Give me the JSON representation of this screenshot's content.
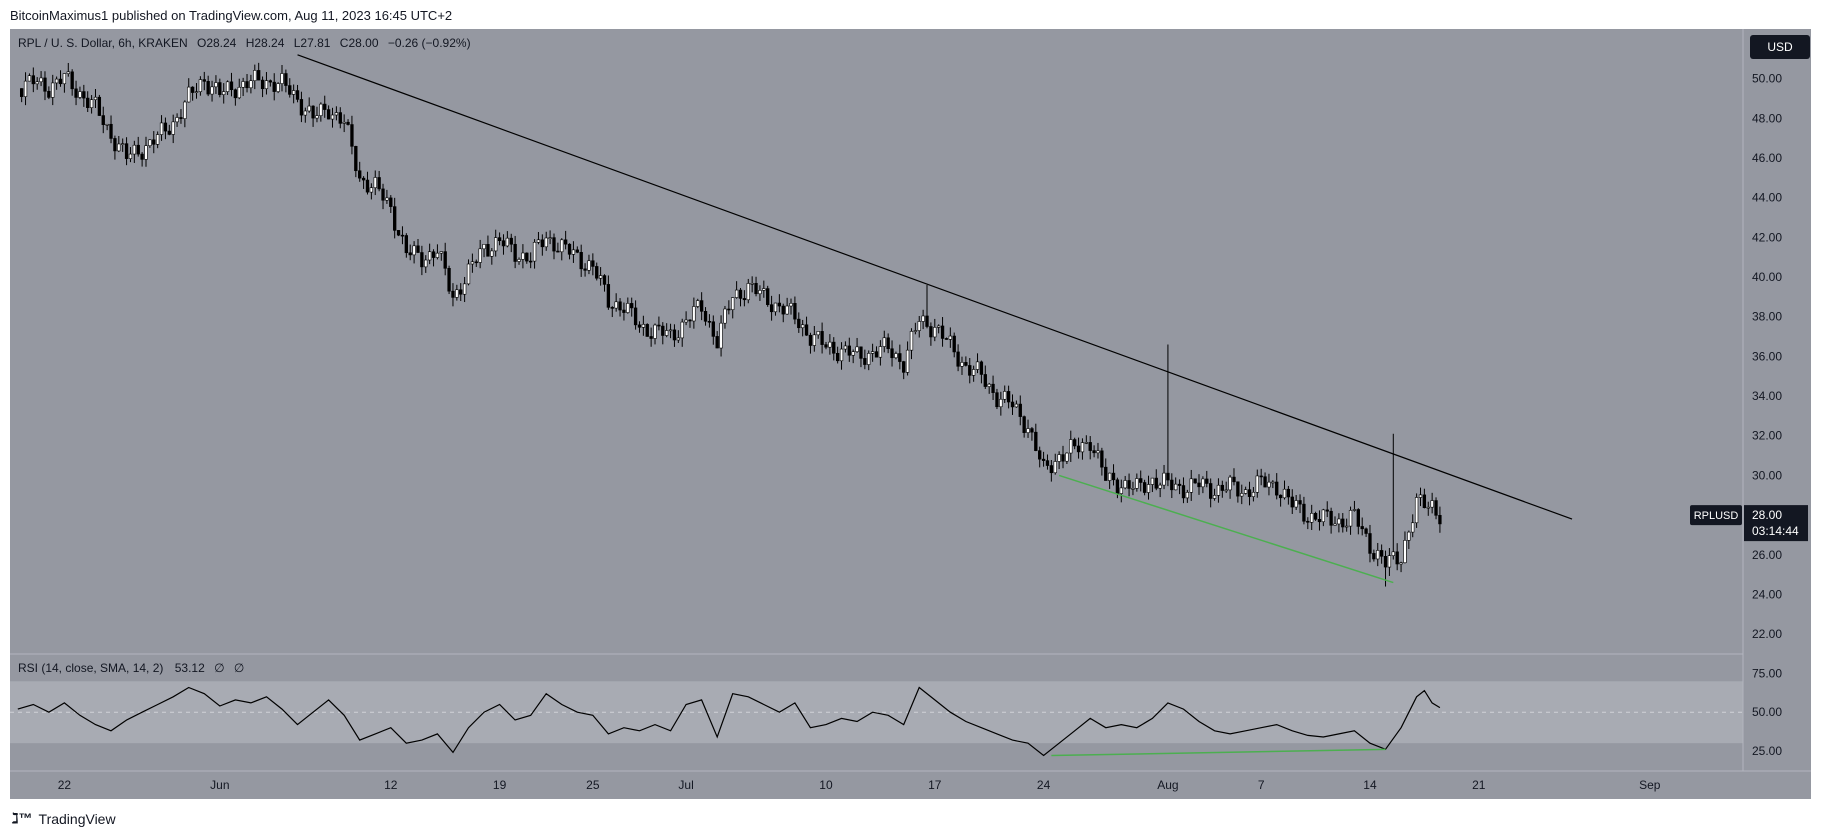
{
  "header": {
    "published_text": "BitcoinMaximus1 published on TradingView.com, Aug 11, 2023 16:45 UTC+2"
  },
  "footer": {
    "brand": "TradingView"
  },
  "colors": {
    "panel_bg": "#9598a1",
    "candle_up": "#ffffff",
    "candle_down": "#000000",
    "trendline": "#000000",
    "divergence": "#4caf50",
    "rsi_line": "#000000",
    "price_tag": "#131722"
  },
  "price_legend": {
    "symbol": "RPL / U. S. Dollar, 6h, KRAKEN",
    "o_label": "O",
    "o": "28.24",
    "h_label": "H",
    "h": "28.24",
    "l_label": "L",
    "l": "27.81",
    "c_label": "C",
    "c": "28.00",
    "change": "−0.26 (−0.92%)"
  },
  "currency_button": "USD",
  "price_tag": {
    "symbol": "RPLUSD",
    "price": "28.00",
    "countdown": "03:14:44"
  },
  "rsi_legend": {
    "label": "RSI (14, close, SMA, 14, 2)",
    "value": "53.12",
    "extra1": "∅",
    "extra2": "∅"
  },
  "chart_data": [
    {
      "type": "candlestick",
      "title": "RPL / U. S. Dollar, 6h, KRAKEN",
      "x_axis_ticks": [
        "22",
        "Jun",
        "12",
        "19",
        "25",
        "Jul",
        "10",
        "17",
        "24",
        "Aug",
        "7",
        "14",
        "21",
        "Sep"
      ],
      "x_tick_day_index": [
        0,
        10,
        21,
        28,
        34,
        40,
        49,
        56,
        63,
        71,
        77,
        84,
        91,
        102
      ],
      "y_ticks": [
        22,
        24,
        26,
        28,
        30,
        32,
        34,
        36,
        38,
        40,
        42,
        44,
        46,
        48,
        50
      ],
      "ylim": [
        21,
        52.5
      ],
      "xlim_days": [
        -3.5,
        108
      ],
      "grid": false,
      "approx_daily_closes": [
        {
          "day": -3,
          "close": 49.5
        },
        {
          "day": -2,
          "close": 49.8
        },
        {
          "day": -1,
          "close": 49.6
        },
        {
          "day": 0,
          "close": 50.0
        },
        {
          "day": 1,
          "close": 49.3
        },
        {
          "day": 2,
          "close": 48.5
        },
        {
          "day": 3,
          "close": 47.2
        },
        {
          "day": 4,
          "close": 46.0
        },
        {
          "day": 5,
          "close": 46.5
        },
        {
          "day": 6,
          "close": 47.0
        },
        {
          "day": 7,
          "close": 47.8
        },
        {
          "day": 8,
          "close": 49.0
        },
        {
          "day": 9,
          "close": 50.0
        },
        {
          "day": 10,
          "close": 49.2
        },
        {
          "day": 11,
          "close": 49.6
        },
        {
          "day": 12,
          "close": 49.8
        },
        {
          "day": 13,
          "close": 49.9
        },
        {
          "day": 14,
          "close": 49.7
        },
        {
          "day": 15,
          "close": 49.0
        },
        {
          "day": 16,
          "close": 48.0
        },
        {
          "day": 17,
          "close": 48.5
        },
        {
          "day": 18,
          "close": 47.8
        },
        {
          "day": 19,
          "close": 45.0
        },
        {
          "day": 20,
          "close": 44.5
        },
        {
          "day": 21,
          "close": 43.5
        },
        {
          "day": 22,
          "close": 41.2
        },
        {
          "day": 23,
          "close": 41.0
        },
        {
          "day": 24,
          "close": 41.3
        },
        {
          "day": 25,
          "close": 39.0
        },
        {
          "day": 26,
          "close": 40.2
        },
        {
          "day": 27,
          "close": 41.5
        },
        {
          "day": 28,
          "close": 41.8
        },
        {
          "day": 29,
          "close": 41.2
        },
        {
          "day": 30,
          "close": 41.0
        },
        {
          "day": 31,
          "close": 42.0
        },
        {
          "day": 32,
          "close": 41.5
        },
        {
          "day": 33,
          "close": 41.0
        },
        {
          "day": 34,
          "close": 40.5
        },
        {
          "day": 35,
          "close": 38.8
        },
        {
          "day": 36,
          "close": 38.5
        },
        {
          "day": 37,
          "close": 37.5
        },
        {
          "day": 38,
          "close": 37.3
        },
        {
          "day": 39,
          "close": 37.0
        },
        {
          "day": 40,
          "close": 37.8
        },
        {
          "day": 41,
          "close": 38.5
        },
        {
          "day": 42,
          "close": 36.8
        },
        {
          "day": 43,
          "close": 39.0
        },
        {
          "day": 44,
          "close": 39.5
        },
        {
          "day": 45,
          "close": 39.0
        },
        {
          "day": 46,
          "close": 38.5
        },
        {
          "day": 47,
          "close": 38.0
        },
        {
          "day": 48,
          "close": 37.0
        },
        {
          "day": 49,
          "close": 36.5
        },
        {
          "day": 50,
          "close": 36.3
        },
        {
          "day": 51,
          "close": 36.0
        },
        {
          "day": 52,
          "close": 36.2
        },
        {
          "day": 53,
          "close": 36.4
        },
        {
          "day": 54,
          "close": 35.7
        },
        {
          "day": 55,
          "close": 37.8
        },
        {
          "day": 56,
          "close": 37.5
        },
        {
          "day": 57,
          "close": 36.5
        },
        {
          "day": 58,
          "close": 35.5
        },
        {
          "day": 59,
          "close": 35.0
        },
        {
          "day": 60,
          "close": 34.0
        },
        {
          "day": 61,
          "close": 33.5
        },
        {
          "day": 62,
          "close": 32.5
        },
        {
          "day": 63,
          "close": 30.2
        },
        {
          "day": 64,
          "close": 31.0
        },
        {
          "day": 65,
          "close": 31.3
        },
        {
          "day": 66,
          "close": 31.8
        },
        {
          "day": 67,
          "close": 29.8
        },
        {
          "day": 68,
          "close": 29.6
        },
        {
          "day": 69,
          "close": 29.3
        },
        {
          "day": 70,
          "close": 29.8
        },
        {
          "day": 71,
          "close": 29.5
        },
        {
          "day": 72,
          "close": 29.4
        },
        {
          "day": 73,
          "close": 29.5
        },
        {
          "day": 74,
          "close": 29.3
        },
        {
          "day": 75,
          "close": 29.4
        },
        {
          "day": 76,
          "close": 29.2
        },
        {
          "day": 77,
          "close": 29.6
        },
        {
          "day": 78,
          "close": 29.5
        },
        {
          "day": 79,
          "close": 28.5
        },
        {
          "day": 80,
          "close": 28.0
        },
        {
          "day": 81,
          "close": 27.8
        },
        {
          "day": 82,
          "close": 27.7
        },
        {
          "day": 83,
          "close": 27.9
        },
        {
          "day": 84,
          "close": 26.5
        },
        {
          "day": 85,
          "close": 25.5
        },
        {
          "day": 86,
          "close": 26.0
        },
        {
          "day": 87,
          "close": 28.5
        },
        {
          "day": 88,
          "close": 28.6
        },
        {
          "day": 88.5,
          "close": 28.0
        }
      ],
      "notable_wicks": [
        {
          "day": 55.5,
          "high": 39.6
        },
        {
          "day": 71,
          "high": 36.6
        },
        {
          "day": 85.5,
          "high": 32.1
        },
        {
          "day": 85,
          "low": 24.4
        }
      ],
      "annotations": [
        {
          "type": "trendline",
          "from": {
            "day": 15,
            "price": 51.2
          },
          "to": {
            "day": 97,
            "price": 27.8
          }
        },
        {
          "type": "support_line",
          "from": {
            "day": 64,
            "price": 30.0
          },
          "to": {
            "day": 85.5,
            "price": 24.6
          }
        }
      ],
      "last_price": 28.0
    },
    {
      "type": "line",
      "title": "RSI (14, close, SMA, 14, 2)",
      "y_ticks": [
        25,
        50,
        75
      ],
      "ylim": [
        12,
        87
      ],
      "band": [
        30,
        70
      ],
      "series": [
        {
          "name": "RSI",
          "points": [
            {
              "day": -3,
              "value": 52
            },
            {
              "day": -2,
              "value": 55
            },
            {
              "day": -1,
              "value": 50
            },
            {
              "day": 0,
              "value": 56
            },
            {
              "day": 1,
              "value": 48
            },
            {
              "day": 2,
              "value": 42
            },
            {
              "day": 3,
              "value": 38
            },
            {
              "day": 4,
              "value": 45
            },
            {
              "day": 5,
              "value": 50
            },
            {
              "day": 6,
              "value": 55
            },
            {
              "day": 7,
              "value": 60
            },
            {
              "day": 8,
              "value": 66
            },
            {
              "day": 9,
              "value": 62
            },
            {
              "day": 10,
              "value": 54
            },
            {
              "day": 11,
              "value": 58
            },
            {
              "day": 12,
              "value": 56
            },
            {
              "day": 13,
              "value": 60
            },
            {
              "day": 14,
              "value": 52
            },
            {
              "day": 15,
              "value": 42
            },
            {
              "day": 16,
              "value": 50
            },
            {
              "day": 17,
              "value": 58
            },
            {
              "day": 18,
              "value": 48
            },
            {
              "day": 19,
              "value": 32
            },
            {
              "day": 20,
              "value": 36
            },
            {
              "day": 21,
              "value": 40
            },
            {
              "day": 22,
              "value": 30
            },
            {
              "day": 23,
              "value": 32
            },
            {
              "day": 24,
              "value": 36
            },
            {
              "day": 25,
              "value": 24
            },
            {
              "day": 26,
              "value": 40
            },
            {
              "day": 27,
              "value": 50
            },
            {
              "day": 28,
              "value": 55
            },
            {
              "day": 29,
              "value": 45
            },
            {
              "day": 30,
              "value": 48
            },
            {
              "day": 31,
              "value": 62
            },
            {
              "day": 32,
              "value": 55
            },
            {
              "day": 33,
              "value": 50
            },
            {
              "day": 34,
              "value": 48
            },
            {
              "day": 35,
              "value": 36
            },
            {
              "day": 36,
              "value": 40
            },
            {
              "day": 37,
              "value": 38
            },
            {
              "day": 38,
              "value": 42
            },
            {
              "day": 39,
              "value": 38
            },
            {
              "day": 40,
              "value": 55
            },
            {
              "day": 41,
              "value": 58
            },
            {
              "day": 42,
              "value": 34
            },
            {
              "day": 43,
              "value": 62
            },
            {
              "day": 44,
              "value": 60
            },
            {
              "day": 45,
              "value": 55
            },
            {
              "day": 46,
              "value": 50
            },
            {
              "day": 47,
              "value": 56
            },
            {
              "day": 48,
              "value": 40
            },
            {
              "day": 49,
              "value": 42
            },
            {
              "day": 50,
              "value": 46
            },
            {
              "day": 51,
              "value": 44
            },
            {
              "day": 52,
              "value": 50
            },
            {
              "day": 53,
              "value": 48
            },
            {
              "day": 54,
              "value": 42
            },
            {
              "day": 55,
              "value": 66
            },
            {
              "day": 56,
              "value": 58
            },
            {
              "day": 57,
              "value": 50
            },
            {
              "day": 58,
              "value": 44
            },
            {
              "day": 59,
              "value": 40
            },
            {
              "day": 60,
              "value": 36
            },
            {
              "day": 61,
              "value": 32
            },
            {
              "day": 62,
              "value": 30
            },
            {
              "day": 63,
              "value": 22
            },
            {
              "day": 64,
              "value": 30
            },
            {
              "day": 65,
              "value": 38
            },
            {
              "day": 66,
              "value": 46
            },
            {
              "day": 67,
              "value": 40
            },
            {
              "day": 68,
              "value": 42
            },
            {
              "day": 69,
              "value": 40
            },
            {
              "day": 70,
              "value": 46
            },
            {
              "day": 71,
              "value": 56
            },
            {
              "day": 72,
              "value": 52
            },
            {
              "day": 73,
              "value": 44
            },
            {
              "day": 74,
              "value": 38
            },
            {
              "day": 75,
              "value": 36
            },
            {
              "day": 76,
              "value": 38
            },
            {
              "day": 77,
              "value": 40
            },
            {
              "day": 78,
              "value": 42
            },
            {
              "day": 79,
              "value": 38
            },
            {
              "day": 80,
              "value": 35
            },
            {
              "day": 81,
              "value": 34
            },
            {
              "day": 82,
              "value": 36
            },
            {
              "day": 83,
              "value": 38
            },
            {
              "day": 84,
              "value": 30
            },
            {
              "day": 85,
              "value": 26
            },
            {
              "day": 86,
              "value": 40
            },
            {
              "day": 87,
              "value": 60
            },
            {
              "day": 87.5,
              "value": 64
            },
            {
              "day": 88,
              "value": 56
            },
            {
              "day": 88.5,
              "value": 53
            }
          ]
        }
      ],
      "annotations": [
        {
          "type": "divergence_line",
          "from": {
            "day": 63.5,
            "value": 22
          },
          "to": {
            "day": 85,
            "value": 26
          }
        }
      ]
    }
  ]
}
